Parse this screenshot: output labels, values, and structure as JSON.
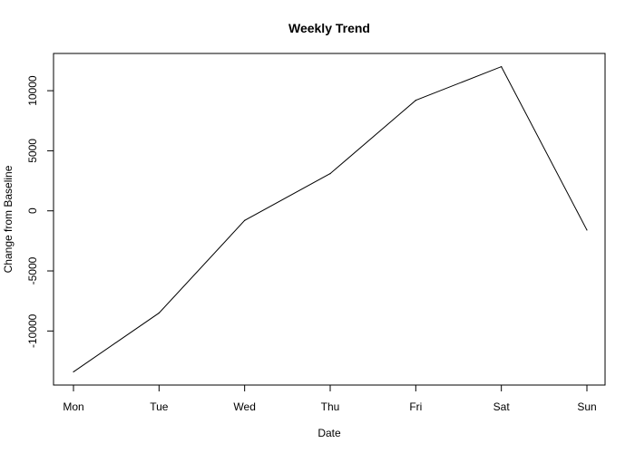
{
  "chart_data": {
    "type": "line",
    "title": "Weekly Trend",
    "xlabel": "Date",
    "ylabel": "Change from Baseline",
    "categories": [
      "Mon",
      "Tue",
      "Wed",
      "Thu",
      "Fri",
      "Sat",
      "Sun"
    ],
    "series": [
      {
        "values": [
          -13400,
          -8500,
          -800,
          3100,
          9200,
          12000,
          -1600
        ],
        "color": "#000000"
      }
    ],
    "y_ticks": [
      -10000,
      -5000,
      0,
      5000,
      10000
    ],
    "y_tick_labels": [
      "-10000",
      "-5000",
      "0",
      "5000",
      "10000"
    ],
    "ylim": [
      -14500,
      13100
    ],
    "grid": false,
    "legend": "none"
  }
}
